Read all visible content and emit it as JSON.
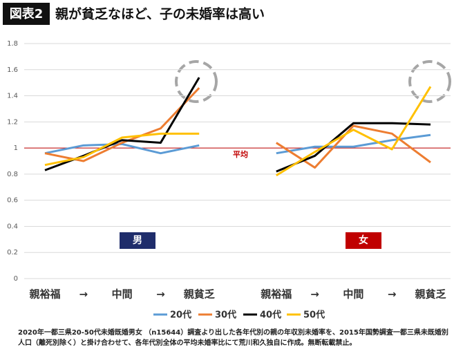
{
  "chart_data": {
    "type": "line",
    "label": "図表2",
    "title": "親が貧乏なほど、子の未婚率は高い",
    "categories": [
      "親裕福",
      "→",
      "中間",
      "→",
      "親貧乏",
      null,
      "親裕福",
      "→",
      "中間",
      "→",
      "親貧乏"
    ],
    "series": [
      {
        "name": "20代",
        "color": "#5b9bd5",
        "values": [
          0.96,
          1.02,
          1.03,
          0.96,
          1.02,
          null,
          0.96,
          1.01,
          1.01,
          1.06,
          1.1
        ]
      },
      {
        "name": "30代",
        "color": "#ed7d31",
        "values": [
          0.96,
          0.9,
          1.04,
          1.15,
          1.46,
          null,
          1.04,
          0.85,
          1.17,
          1.11,
          0.89
        ]
      },
      {
        "name": "40代",
        "color": "#000000",
        "values": [
          0.83,
          0.94,
          1.06,
          1.04,
          1.54,
          null,
          0.82,
          0.94,
          1.19,
          1.19,
          1.18
        ]
      },
      {
        "name": "50代",
        "color": "#ffc000",
        "values": [
          0.87,
          0.93,
          1.08,
          1.11,
          1.11,
          null,
          0.79,
          0.97,
          1.14,
          0.99,
          1.47
        ]
      }
    ],
    "ylim": [
      0,
      1.8
    ],
    "yticks": [
      0,
      0.2,
      0.4,
      0.6,
      0.8,
      1,
      1.2,
      1.4,
      1.6,
      1.8
    ],
    "grid": true,
    "reference_line": {
      "value": 1,
      "label": "平均",
      "color": "#c00000"
    },
    "group_labels": [
      {
        "text": "男",
        "color": "#1f2d6b"
      },
      {
        "text": "女",
        "color": "#c00000"
      }
    ],
    "legend": "bottom",
    "note": "2020年一都三県20-50代未婚既婚男女 （n15644）調査より出した各年代別の親の年収別未婚率を、2015年国勢調査一都三県未既婚別人口（離死別除く）と掛け合わせて、各年代別全体の平均未婚率比にて荒川和久独自に作成。無断転載禁止。"
  }
}
